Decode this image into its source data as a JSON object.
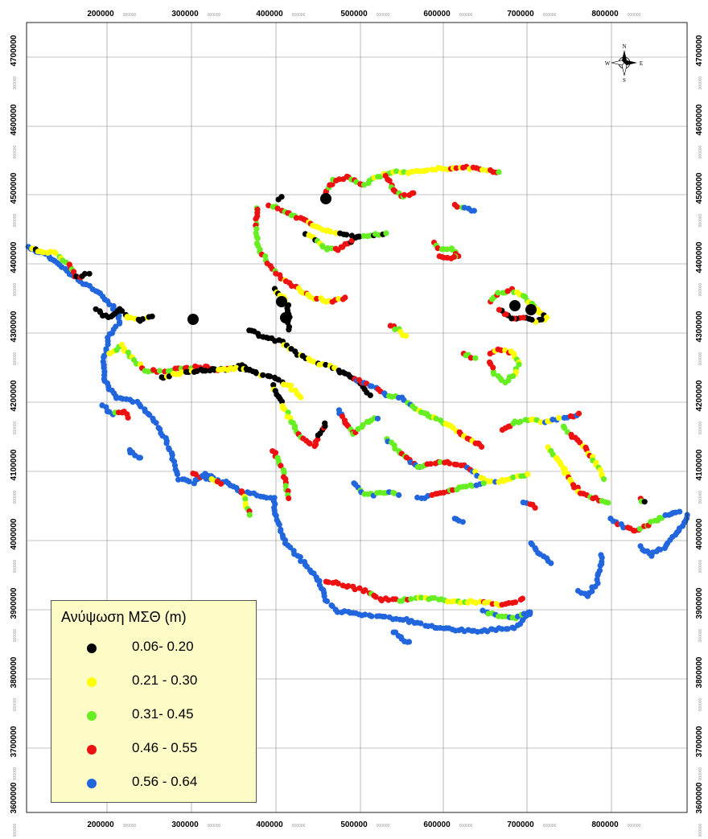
{
  "axes": {
    "x_ticks": [
      {
        "label": "200000",
        "suffix": "000000"
      },
      {
        "label": "300000",
        "suffix": "000000"
      },
      {
        "label": "400000",
        "suffix": "000000"
      },
      {
        "label": "500000",
        "suffix": "000000"
      },
      {
        "label": "600000",
        "suffix": "000000"
      },
      {
        "label": "700000",
        "suffix": "000000"
      },
      {
        "label": "800000",
        "suffix": "000000"
      }
    ],
    "y_ticks": [
      {
        "label": "4700000",
        "suffix": "000000"
      },
      {
        "label": "4600000",
        "suffix": "000000"
      },
      {
        "label": "4500000",
        "suffix": "000000"
      },
      {
        "label": "4400000",
        "suffix": "000000"
      },
      {
        "label": "4300000",
        "suffix": "000000"
      },
      {
        "label": "4200000",
        "suffix": "000000"
      },
      {
        "label": "4100000",
        "suffix": "000000"
      },
      {
        "label": "4000000",
        "suffix": "000000"
      },
      {
        "label": "3900000",
        "suffix": "000000"
      },
      {
        "label": "3800000",
        "suffix": "000000"
      },
      {
        "label": "3700000",
        "suffix": "000000"
      },
      {
        "label": "3600000",
        "suffix": "000000"
      }
    ]
  },
  "compass": {
    "n": "N",
    "s": "S",
    "e": "E",
    "w": "W"
  },
  "legend": {
    "title": "Ανύψωση ΜΣΘ (m)",
    "items": [
      {
        "label": "0.06- 0.20",
        "color": "#000000"
      },
      {
        "label": "0.21 - 0.30",
        "color": "#ffff00"
      },
      {
        "label": "0.31- 0.45",
        "color": "#66ee22"
      },
      {
        "label": "0.46 - 0.55",
        "color": "#ee1111"
      },
      {
        "label": "0.56 - 0.64",
        "color": "#2266dd"
      }
    ]
  },
  "colors": {
    "black": "#000000",
    "yellow": "#ffff00",
    "green": "#66ee22",
    "red": "#ee1111",
    "blue": "#2266dd"
  }
}
